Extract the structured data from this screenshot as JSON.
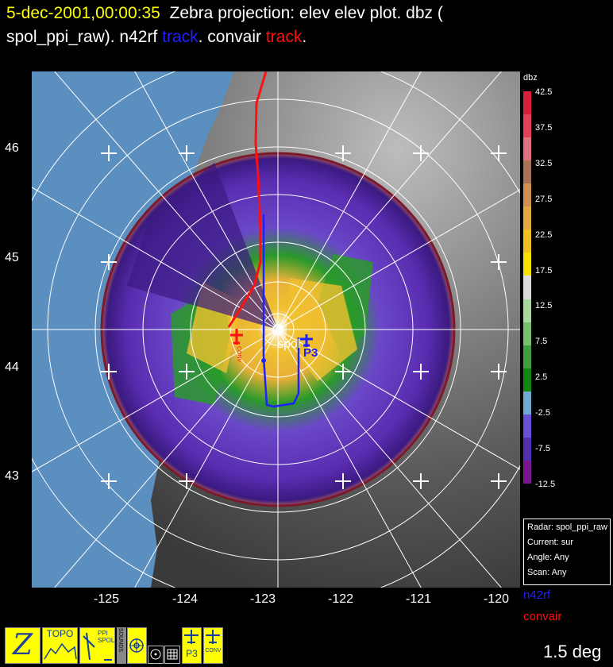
{
  "title": {
    "timestamp": "5-dec-2001,00:00:35",
    "line1_rest": "Zebra projection: elev elev  plot.  dbz (",
    "line2_a": "spol_ppi_raw).   n42rf ",
    "track_word_1": "track",
    "line2_b": ".   convair ",
    "track_word_2": "track",
    "line2_c": "."
  },
  "axes": {
    "lat_labels": [
      "46",
      "45",
      "44",
      "43"
    ],
    "lon_labels": [
      "-125",
      "-124",
      "-123",
      "-122",
      "-121",
      "-120"
    ]
  },
  "plot_labels": {
    "radar_site": "spol",
    "p3_marker": "P3",
    "convair_marker": "CONV"
  },
  "colorbar": {
    "title": "dbz",
    "labels": [
      "42.5",
      "37.5",
      "32.5",
      "27.5",
      "22.5",
      "17.5",
      "12.5",
      "7.5",
      "2.5",
      "-2.5",
      "-7.5",
      "-12.5"
    ],
    "colors": [
      "#d8203c",
      "#e0405a",
      "#e07080",
      "#a87458",
      "#d09050",
      "#e0a840",
      "#f0c020",
      "#f8e000",
      "#dcdcdc",
      "#a8d8a0",
      "#78c070",
      "#40a040",
      "#108810",
      "#70a8d0",
      "#6a50d0",
      "#5030b0",
      "#781890"
    ]
  },
  "info": {
    "radar": "Radar: spol_ppi_raw",
    "current": "Current: sur",
    "angle": "Angle: Any",
    "scan": "Scan: Any"
  },
  "legend": {
    "n42rf": "n42rf",
    "convair": "convair",
    "n42rf_color": "#2020ff",
    "convair_color": "#ff1010"
  },
  "elevation": "1.5 deg",
  "toolbar": {
    "zebra": "Z",
    "topo": "TOPO",
    "ppi_spol": "PPI SPOL",
    "sounds": "SOUNDS",
    "p3": "P3",
    "conv": "CONV"
  }
}
